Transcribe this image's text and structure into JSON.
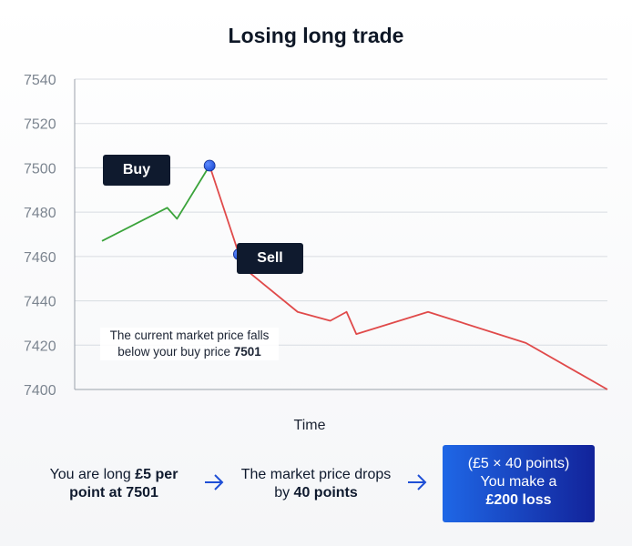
{
  "title": "Losing long trade",
  "chart_data": {
    "type": "line",
    "title": "Losing long trade",
    "xlabel": "Time",
    "ylabel": "",
    "ylim": [
      7400,
      7540
    ],
    "yticks": [
      7540,
      7520,
      7500,
      7480,
      7460,
      7440,
      7420,
      7400
    ],
    "grid": true,
    "series": [
      {
        "color": "#3aa33a",
        "x": [
          0,
          2,
          2.3,
          3.3
        ],
        "values": [
          7467,
          7482,
          7477,
          7501
        ]
      },
      {
        "color": "#e04a4a",
        "x": [
          3.3,
          4.2,
          4.5,
          6.0,
          7.0,
          7.5,
          7.8,
          10.0,
          13.0,
          15.5
        ],
        "values": [
          7501,
          7461,
          7453,
          7435,
          7431,
          7435,
          7425,
          7435,
          7421,
          7400
        ]
      }
    ],
    "markers": [
      {
        "label": "Buy",
        "x": 3.3,
        "y": 7501
      },
      {
        "label": "Sell",
        "x": 4.2,
        "y": 7461
      }
    ],
    "annotation": {
      "text": "The current market price falls below your buy price ",
      "value": "7501"
    },
    "marker_color": "#1f4fd6"
  },
  "steps": {
    "step1": {
      "prefix": "You are long ",
      "bold": "£5 per point at 7501"
    },
    "step2": {
      "prefix": "The market price drops by ",
      "bold": "40 points"
    },
    "result": {
      "line1": "(£5 × 40 points)",
      "line2": "You make a",
      "bold": "£200 loss"
    }
  }
}
